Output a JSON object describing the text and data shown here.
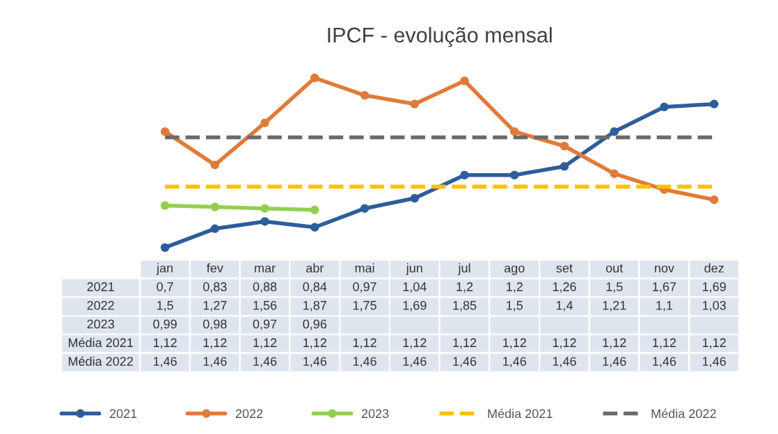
{
  "chart_data": {
    "type": "line",
    "title": "IPCF - evolução mensal",
    "categories": [
      "jan",
      "fev",
      "mar",
      "abr",
      "mai",
      "jun",
      "jul",
      "ago",
      "set",
      "out",
      "nov",
      "dez"
    ],
    "series": [
      {
        "name": "2021",
        "color": "#2e5d9b",
        "marker": "circle",
        "line_style": "solid",
        "values": [
          0.7,
          0.83,
          0.88,
          0.84,
          0.97,
          1.04,
          1.2,
          1.2,
          1.26,
          1.5,
          1.67,
          1.69
        ],
        "value_labels": [
          "0,7",
          "0,83",
          "0,88",
          "0,84",
          "0,97",
          "1,04",
          "1,2",
          "1,2",
          "1,26",
          "1,5",
          "1,67",
          "1,69"
        ]
      },
      {
        "name": "2022",
        "color": "#e07b39",
        "marker": "circle",
        "line_style": "solid",
        "values": [
          1.5,
          1.27,
          1.56,
          1.87,
          1.75,
          1.69,
          1.85,
          1.5,
          1.4,
          1.21,
          1.1,
          1.03
        ],
        "value_labels": [
          "1,5",
          "1,27",
          "1,56",
          "1,87",
          "1,75",
          "1,69",
          "1,85",
          "1,5",
          "1,4",
          "1,21",
          "1,1",
          "1,03"
        ]
      },
      {
        "name": "2023",
        "color": "#92d050",
        "marker": "circle",
        "line_style": "solid",
        "values": [
          0.99,
          0.98,
          0.97,
          0.96,
          null,
          null,
          null,
          null,
          null,
          null,
          null,
          null
        ],
        "value_labels": [
          "0,99",
          "0,98",
          "0,97",
          "0,96",
          null,
          null,
          null,
          null,
          null,
          null,
          null,
          null
        ]
      },
      {
        "name": "Média 2021",
        "color": "#ffc000",
        "marker": "none",
        "line_style": "dashed",
        "values": [
          1.12,
          1.12,
          1.12,
          1.12,
          1.12,
          1.12,
          1.12,
          1.12,
          1.12,
          1.12,
          1.12,
          1.12
        ],
        "value_labels": [
          "1,12",
          "1,12",
          "1,12",
          "1,12",
          "1,12",
          "1,12",
          "1,12",
          "1,12",
          "1,12",
          "1,12",
          "1,12",
          "1,12"
        ]
      },
      {
        "name": "Média 2022",
        "color": "#6b6b6b",
        "marker": "none",
        "line_style": "dashed",
        "values": [
          1.46,
          1.46,
          1.46,
          1.46,
          1.46,
          1.46,
          1.46,
          1.46,
          1.46,
          1.46,
          1.46,
          1.46
        ],
        "value_labels": [
          "1,46",
          "1,46",
          "1,46",
          "1,46",
          "1,46",
          "1,46",
          "1,46",
          "1,46",
          "1,46",
          "1,46",
          "1,46",
          "1,46"
        ]
      }
    ],
    "legend": "bottom"
  }
}
